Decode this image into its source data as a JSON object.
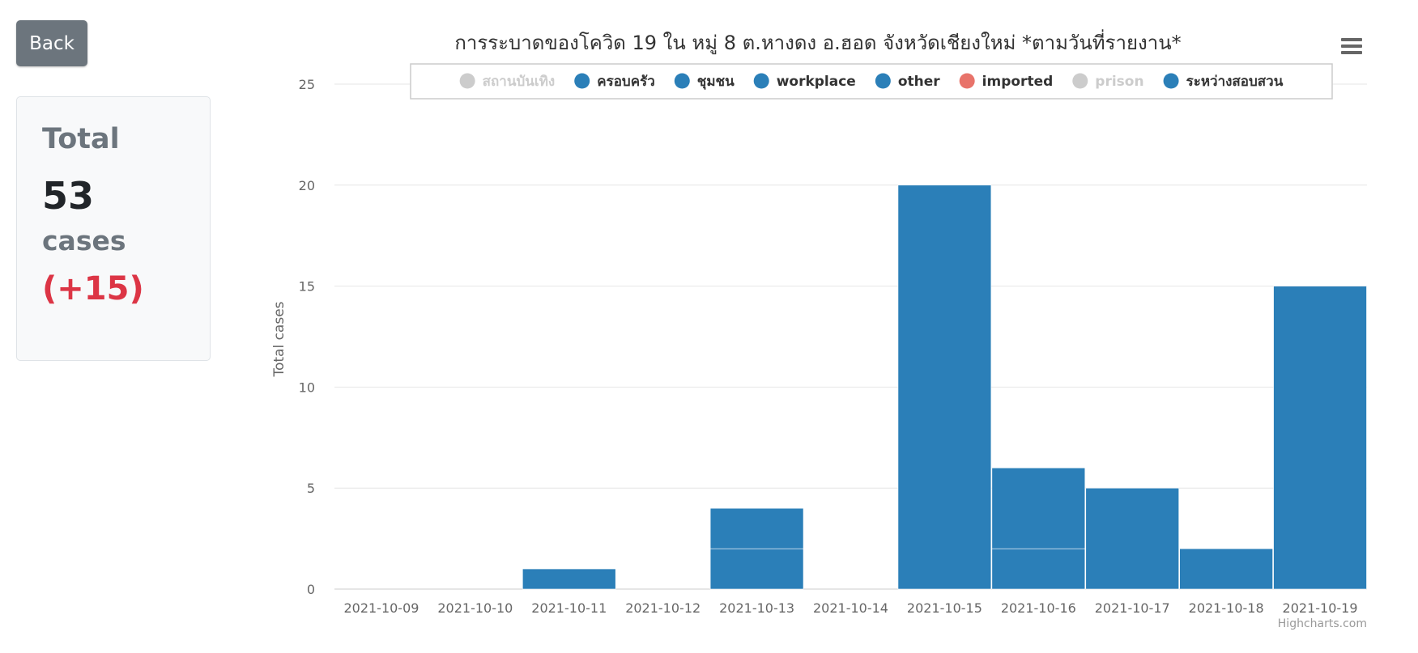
{
  "back_button": {
    "label": "Back"
  },
  "summary": {
    "title": "Total",
    "value": "53",
    "unit": "cases",
    "delta": "(+15)"
  },
  "menu": {
    "icon": "hamburger-menu-icon"
  },
  "credits": "Highcharts.com",
  "colors": {
    "series": "#2b7fb8",
    "imported": "#e8736a",
    "disabled": "#cccccc",
    "delta": "#dc3545"
  },
  "chart_data": {
    "type": "bar",
    "stacked": true,
    "title": "การระบาดของโควิด 19 ใน หมู่ 8 ต.หางดง อ.ฮอด จังหวัดเชียงใหม่ *ตามวันที่รายงาน*",
    "xlabel": "",
    "ylabel": "Total cases",
    "ylim": [
      0,
      25
    ],
    "yticks": [
      0,
      5,
      10,
      15,
      20,
      25
    ],
    "grid": true,
    "legend_position": "top",
    "categories": [
      "2021-10-09",
      "2021-10-10",
      "2021-10-11",
      "2021-10-12",
      "2021-10-13",
      "2021-10-14",
      "2021-10-15",
      "2021-10-16",
      "2021-10-17",
      "2021-10-18",
      "2021-10-19"
    ],
    "series": [
      {
        "name": "สถานบันเทิง",
        "enabled": false,
        "color": "#cccccc",
        "values": [
          0,
          0,
          0,
          0,
          0,
          0,
          0,
          0,
          0,
          0,
          0
        ]
      },
      {
        "name": "ครอบครัว",
        "enabled": true,
        "color": "#2b7fb8",
        "values": [
          0,
          0,
          1,
          0,
          2,
          0,
          20,
          2,
          5,
          2,
          15
        ]
      },
      {
        "name": "ชุมชน",
        "enabled": true,
        "color": "#2b7fb8",
        "values": [
          0,
          0,
          0,
          0,
          2,
          0,
          0,
          4,
          0,
          0,
          0
        ]
      },
      {
        "name": "workplace",
        "enabled": true,
        "color": "#2b7fb8",
        "values": [
          0,
          0,
          0,
          0,
          0,
          0,
          0,
          0,
          0,
          0,
          0
        ]
      },
      {
        "name": "other",
        "enabled": true,
        "color": "#2b7fb8",
        "values": [
          0,
          0,
          0,
          0,
          0,
          0,
          0,
          0,
          0,
          0,
          0
        ]
      },
      {
        "name": "imported",
        "enabled": true,
        "color": "#e8736a",
        "values": [
          0,
          0,
          0,
          0,
          0,
          0,
          0,
          0,
          0,
          0,
          0
        ]
      },
      {
        "name": "prison",
        "enabled": false,
        "color": "#cccccc",
        "values": [
          0,
          0,
          0,
          0,
          0,
          0,
          0,
          0,
          0,
          0,
          0
        ]
      },
      {
        "name": "ระหว่างสอบสวน",
        "enabled": true,
        "color": "#2b7fb8",
        "values": [
          0,
          0,
          0,
          0,
          0,
          0,
          0,
          0,
          0,
          0,
          0
        ]
      }
    ]
  }
}
